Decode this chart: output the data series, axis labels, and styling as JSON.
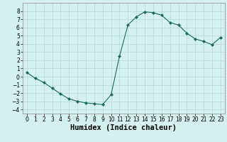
{
  "x": [
    0,
    1,
    2,
    3,
    4,
    5,
    6,
    7,
    8,
    9,
    10,
    11,
    12,
    13,
    14,
    15,
    16,
    17,
    18,
    19,
    20,
    21,
    22,
    23
  ],
  "y": [
    0.5,
    -0.2,
    -0.7,
    -1.4,
    -2.1,
    -2.7,
    -3.0,
    -3.2,
    -3.3,
    -3.4,
    -2.2,
    2.5,
    6.3,
    7.3,
    7.9,
    7.8,
    7.5,
    6.6,
    6.3,
    5.3,
    4.6,
    4.3,
    3.9,
    4.8
  ],
  "line_color": "#1a6b5e",
  "marker": "D",
  "marker_size": 2.0,
  "background_color": "#d4f0ef",
  "grid_color": "#b0d8d5",
  "xlabel": "Humidex (Indice chaleur)",
  "ylim": [
    -4.5,
    9
  ],
  "xlim": [
    -0.5,
    23.5
  ],
  "yticks": [
    -4,
    -3,
    -2,
    -1,
    0,
    1,
    2,
    3,
    4,
    5,
    6,
    7,
    8
  ],
  "xticks": [
    0,
    1,
    2,
    3,
    4,
    5,
    6,
    7,
    8,
    9,
    10,
    11,
    12,
    13,
    14,
    15,
    16,
    17,
    18,
    19,
    20,
    21,
    22,
    23
  ],
  "tick_fontsize": 5.5,
  "xlabel_fontsize": 7.5
}
